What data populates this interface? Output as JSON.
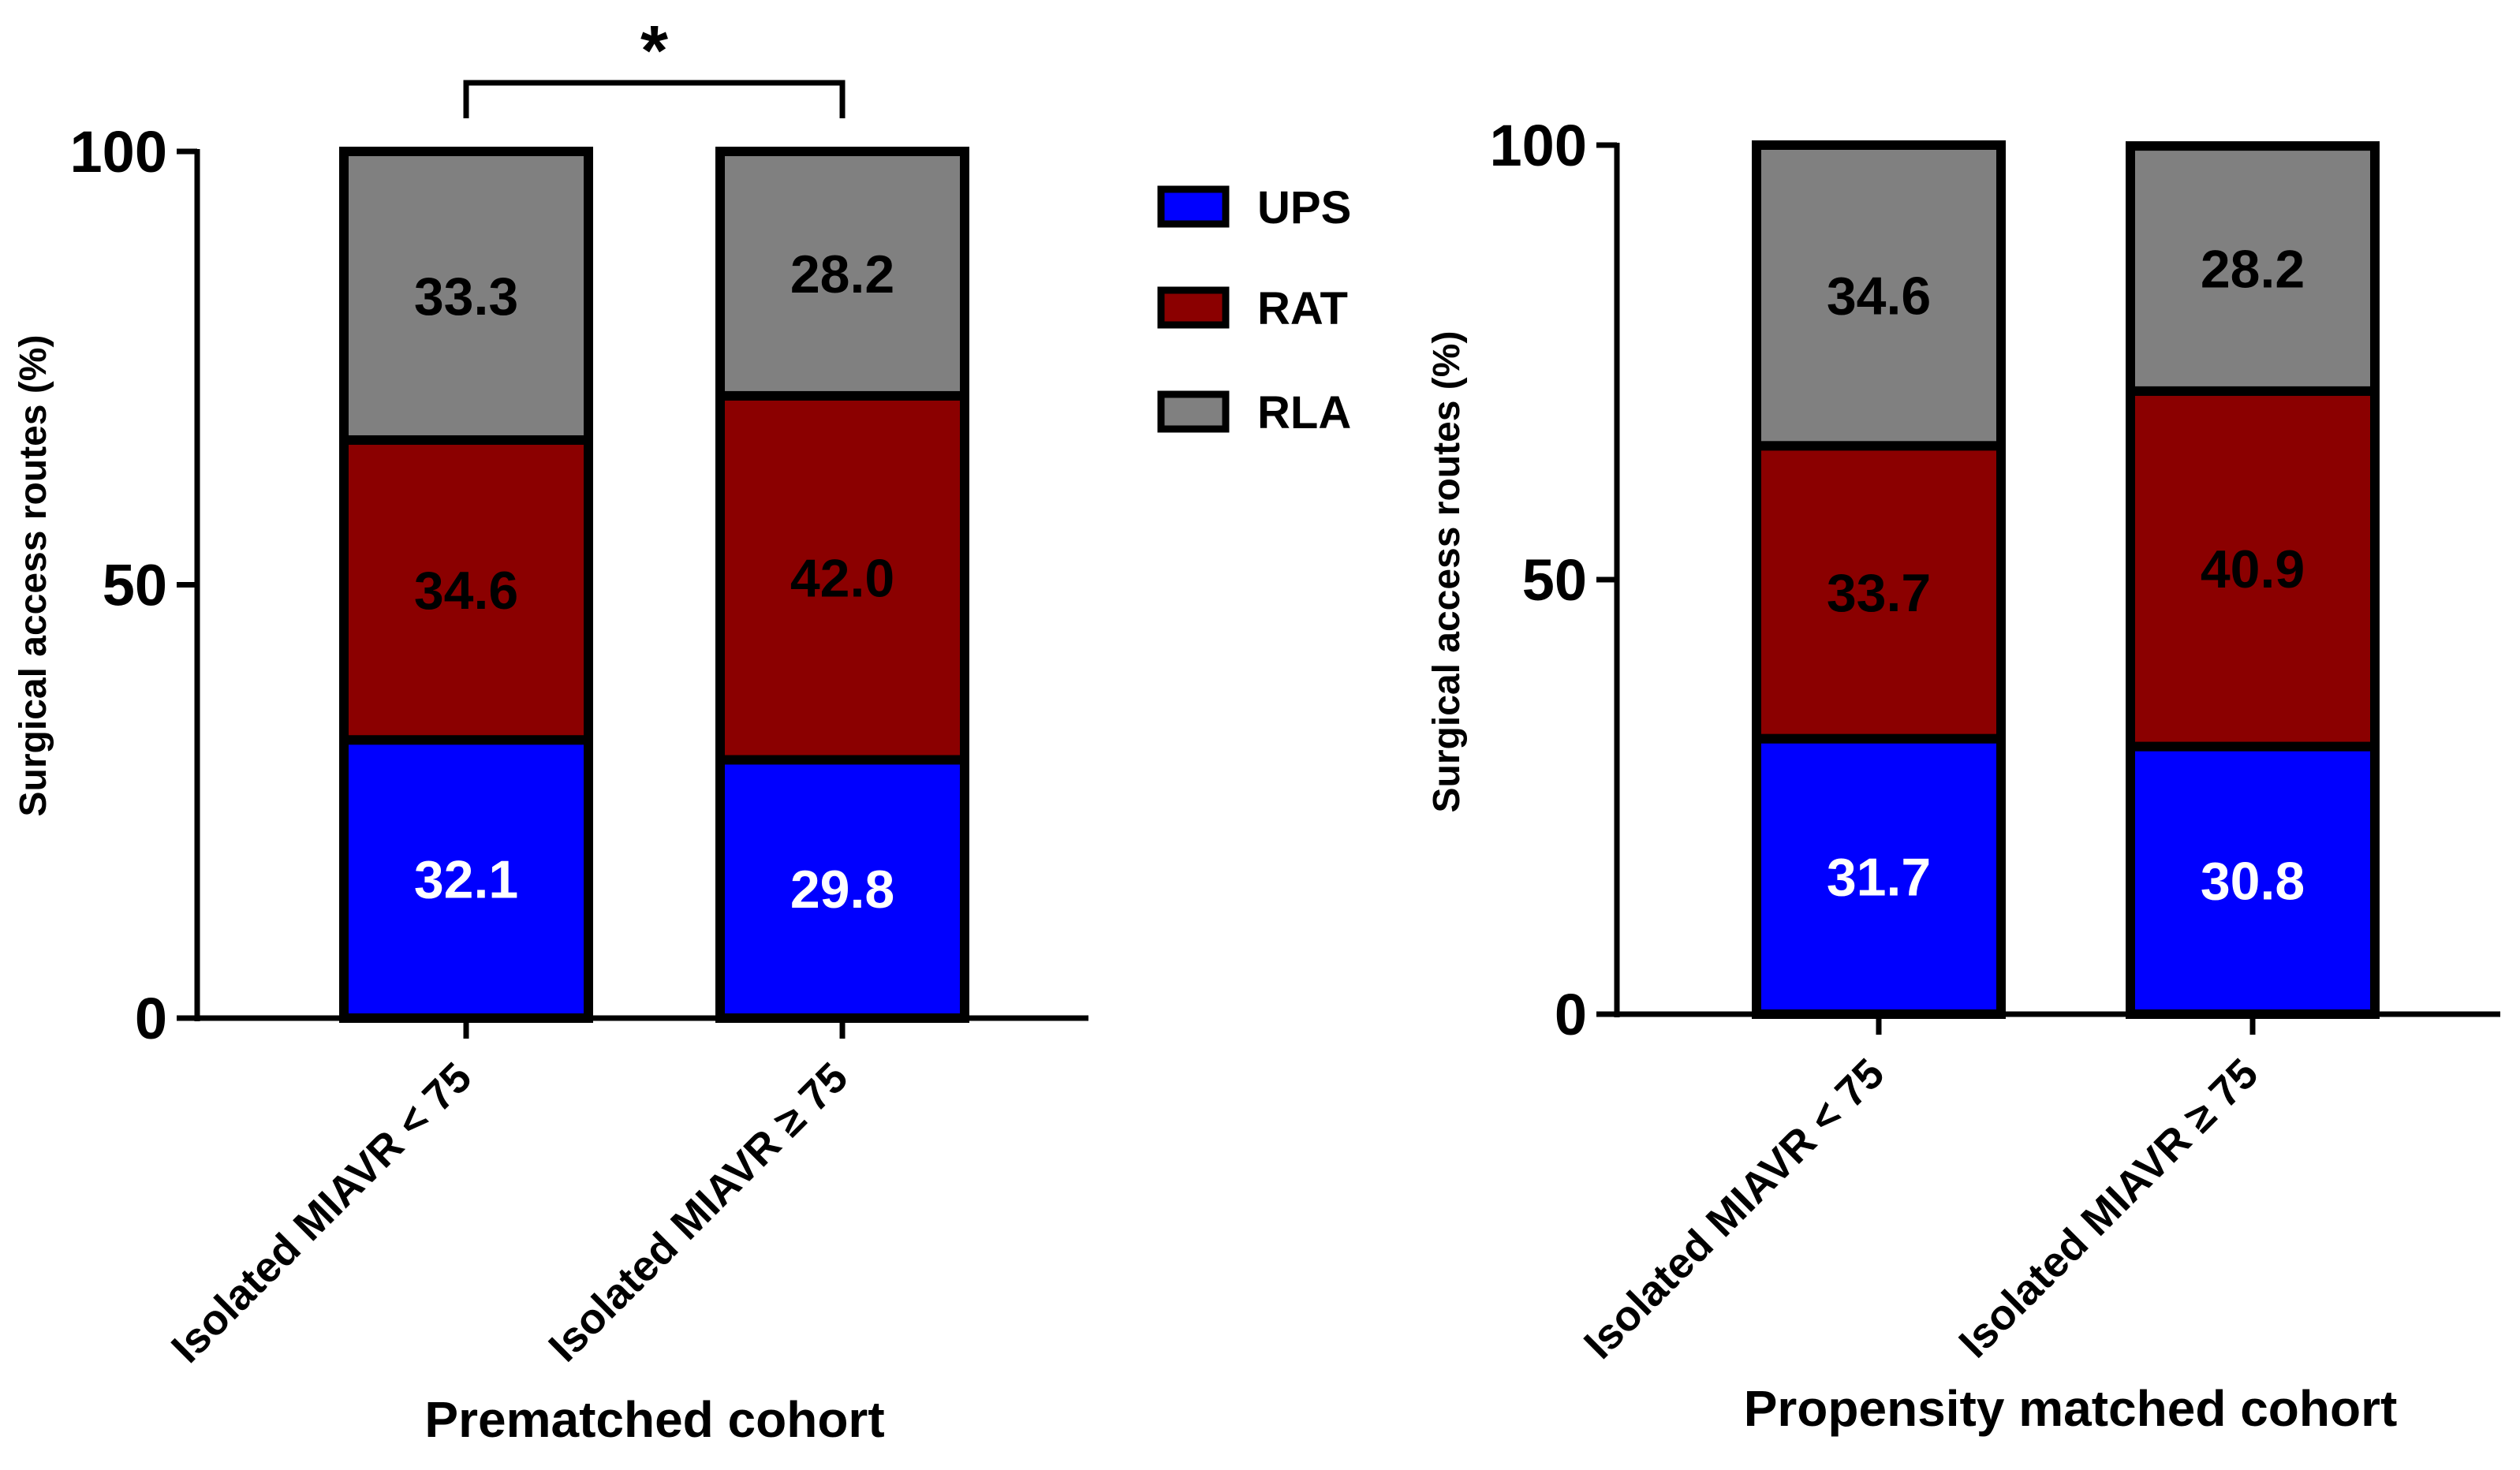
{
  "chart_data": [
    {
      "type": "bar",
      "stacked": true,
      "title": "Prematched cohort",
      "xlabel": "Prematched cohort",
      "ylabel": "Surgical access routes (%)",
      "ylim": [
        0,
        100
      ],
      "yticks": [
        "0",
        "50",
        "100"
      ],
      "categories": [
        "Isolated MIAVR < 75",
        "Isolated MIAVR ≥ 75"
      ],
      "series": [
        {
          "name": "UPS",
          "color": "#0000ff",
          "label_color": "#ffffff",
          "values": [
            32.1,
            29.8
          ],
          "labels": [
            "32.1",
            "29.8"
          ]
        },
        {
          "name": "RAT",
          "color": "#8b0000",
          "label_color": "#000000",
          "values": [
            34.6,
            42.0
          ],
          "labels": [
            "34.6",
            "42.0"
          ]
        },
        {
          "name": "RLA",
          "color": "#808080",
          "label_color": "#000000",
          "values": [
            33.3,
            28.2
          ],
          "labels": [
            "33.3",
            "28.2"
          ]
        }
      ],
      "significance": {
        "between": [
          0,
          1
        ],
        "label": "*"
      },
      "legend": "right"
    },
    {
      "type": "bar",
      "stacked": true,
      "title": "Propensity matched cohort",
      "xlabel": "Propensity matched cohort",
      "ylabel": "Surgical access routes (%)",
      "ylim": [
        0,
        100
      ],
      "yticks": [
        "0",
        "50",
        "100"
      ],
      "categories": [
        "Isolated MIAVR < 75",
        "Isolated MIAVR ≥ 75"
      ],
      "series": [
        {
          "name": "UPS",
          "color": "#0000ff",
          "label_color": "#ffffff",
          "values": [
            31.7,
            30.8
          ],
          "labels": [
            "31.7",
            "30.8"
          ]
        },
        {
          "name": "RAT",
          "color": "#8b0000",
          "label_color": "#000000",
          "values": [
            33.7,
            40.9
          ],
          "labels": [
            "33.7",
            "40.9"
          ]
        },
        {
          "name": "RLA",
          "color": "#808080",
          "label_color": "#000000",
          "values": [
            34.6,
            28.2
          ],
          "labels": [
            "34.6",
            "28.2"
          ]
        }
      ]
    }
  ],
  "legend": {
    "items": [
      {
        "name": "UPS",
        "color": "#0000ff"
      },
      {
        "name": "RAT",
        "color": "#8b0000"
      },
      {
        "name": "RLA",
        "color": "#808080"
      }
    ]
  }
}
